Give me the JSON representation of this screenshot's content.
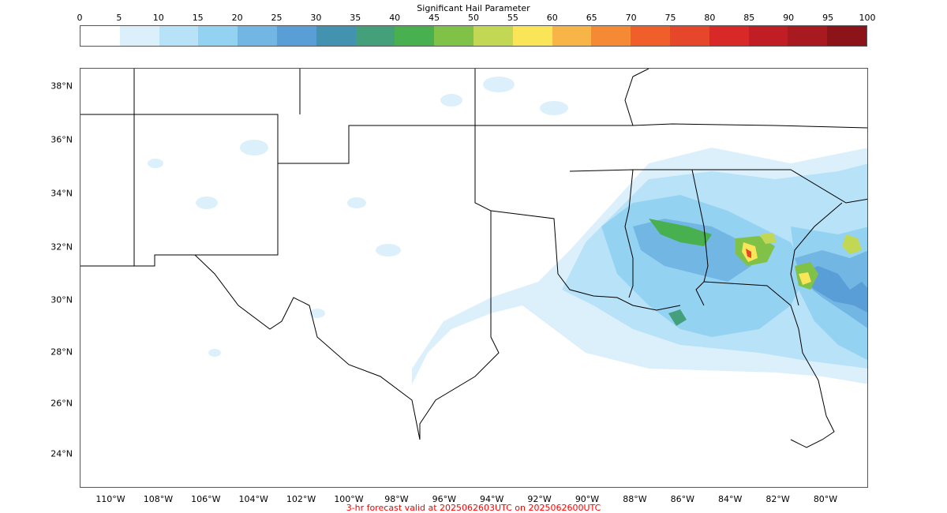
{
  "colorbar": {
    "title": "Significant Hail Parameter",
    "ticks": [
      "0",
      "5",
      "10",
      "15",
      "20",
      "25",
      "30",
      "35",
      "40",
      "45",
      "50",
      "55",
      "60",
      "65",
      "70",
      "75",
      "80",
      "85",
      "90",
      "95",
      "100"
    ],
    "colors": [
      "#ffffff",
      "#dcf0fc",
      "#b8e2f8",
      "#94d2f2",
      "#72b6e4",
      "#5a9ed8",
      "#4292b0",
      "#44a07a",
      "#48b04e",
      "#80c248",
      "#c2d854",
      "#fae458",
      "#f8b446",
      "#f68a34",
      "#f05e2a",
      "#e6462a",
      "#d82828",
      "#c01e24",
      "#a81a20",
      "#8c1418"
    ]
  },
  "map": {
    "lat_labels": [
      "38°N",
      "36°N",
      "34°N",
      "32°N",
      "30°N",
      "28°N",
      "26°N",
      "24°N"
    ],
    "lon_labels": [
      "110°W",
      "108°W",
      "106°W",
      "104°W",
      "102°W",
      "100°W",
      "98°W",
      "96°W",
      "94°W",
      "92°W",
      "90°W",
      "88°W",
      "86°W",
      "84°W",
      "82°W",
      "80°W"
    ]
  },
  "footer": "3-hr forecast valid at 2025062603UTC on 2025062600UTC"
}
